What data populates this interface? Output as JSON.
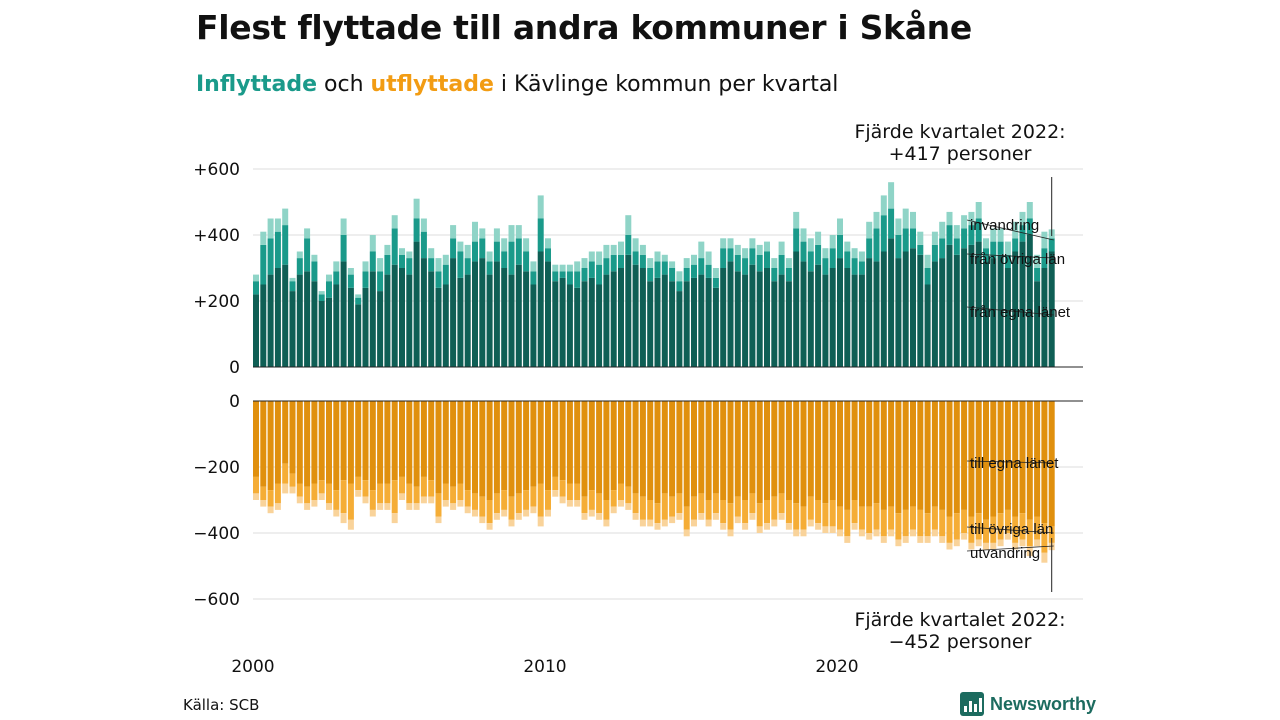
{
  "title": "Flest flyttade till andra kommuner i Skåne",
  "subtitle": {
    "in_word": "Inflyttade",
    "and_word": " och ",
    "out_word": "utflyttade",
    "rest": " i Kävlinge kommun per kvartal"
  },
  "source": "Källa: SCB",
  "brand": "Newsworthy",
  "colors": {
    "in_own": "#0f5f55",
    "in_other": "#1a9a8a",
    "in_abroad": "#8fd4c7",
    "out_own": "#e0900e",
    "out_other": "#f5ad36",
    "out_abroad": "#f9d39a"
  },
  "chart_data": {
    "type": "bar",
    "x_start": "2000 Q1",
    "x_ticks": [
      "2000",
      "2010",
      "2020"
    ],
    "top_ticks": [
      "+600",
      "+400",
      "+200",
      "0"
    ],
    "bottom_ticks": [
      "0",
      "−200",
      "−400",
      "−600"
    ],
    "top_ylim": [
      0,
      600
    ],
    "bottom_ylim": [
      -600,
      0
    ],
    "top_annotation": [
      "Fjärde kvartalet 2022:",
      "+417 personer"
    ],
    "bottom_annotation": [
      "Fjärde kvartalet 2022:",
      "−452 personer"
    ],
    "in_labels": [
      "invandring",
      "från övriga län",
      "från egna länet"
    ],
    "out_labels": [
      "till egna länet",
      "till övriga län",
      "utvandring"
    ],
    "inflyttade": {
      "from_own_county": [
        220,
        250,
        280,
        300,
        310,
        230,
        280,
        290,
        260,
        200,
        210,
        250,
        320,
        240,
        190,
        240,
        290,
        230,
        280,
        310,
        300,
        280,
        380,
        330,
        290,
        240,
        250,
        330,
        270,
        280,
        320,
        330,
        280,
        320,
        300,
        280,
        310,
        290,
        250,
        350,
        320,
        260,
        270,
        250,
        240,
        260,
        270,
        250,
        280,
        290,
        300,
        340,
        310,
        300,
        260,
        270,
        280,
        260,
        230,
        260,
        270,
        280,
        270,
        240,
        300,
        320,
        290,
        280,
        310,
        290,
        300,
        260,
        280,
        260,
        350,
        320,
        290,
        310,
        280,
        300,
        330,
        300,
        280,
        280,
        330,
        320,
        350,
        390,
        330,
        350,
        360,
        340,
        250,
        320,
        330,
        370,
        340,
        360,
        370,
        380,
        320,
        330,
        340,
        300,
        350,
        380,
        400,
        260,
        300,
        350
      ],
      "from_other_counties": [
        40,
        120,
        110,
        110,
        120,
        30,
        50,
        100,
        60,
        20,
        50,
        40,
        80,
        40,
        20,
        50,
        60,
        60,
        60,
        110,
        40,
        50,
        70,
        80,
        40,
        50,
        60,
        60,
        80,
        50,
        60,
        60,
        40,
        60,
        50,
        100,
        80,
        60,
        40,
        100,
        40,
        30,
        20,
        40,
        50,
        40,
        50,
        60,
        50,
        50,
        40,
        60,
        40,
        40,
        40,
        50,
        40,
        40,
        30,
        40,
        40,
        50,
        40,
        30,
        60,
        40,
        50,
        50,
        50,
        50,
        50,
        40,
        60,
        40,
        70,
        60,
        60,
        60,
        50,
        60,
        70,
        50,
        50,
        40,
        60,
        100,
        110,
        90,
        70,
        70,
        60,
        30,
        50,
        50,
        60,
        60,
        50,
        60,
        60,
        70,
        40,
        50,
        40,
        40,
        40,
        50,
        50,
        40,
        60,
        40
      ],
      "from_abroad": [
        20,
        40,
        60,
        40,
        50,
        10,
        20,
        30,
        20,
        10,
        20,
        30,
        50,
        20,
        10,
        30,
        50,
        40,
        30,
        40,
        20,
        20,
        60,
        40,
        30,
        40,
        30,
        40,
        30,
        40,
        60,
        30,
        30,
        40,
        40,
        50,
        40,
        40,
        30,
        70,
        30,
        20,
        20,
        20,
        30,
        30,
        30,
        40,
        40,
        30,
        40,
        60,
        40,
        30,
        30,
        30,
        20,
        20,
        30,
        30,
        30,
        50,
        40,
        30,
        30,
        30,
        30,
        30,
        30,
        30,
        30,
        30,
        40,
        30,
        50,
        40,
        40,
        40,
        30,
        40,
        50,
        30,
        30,
        30,
        50,
        50,
        60,
        80,
        50,
        60,
        50,
        40,
        40,
        40,
        50,
        40,
        40,
        40,
        40,
        50,
        30,
        40,
        40,
        40,
        50,
        40,
        50,
        40,
        50,
        27
      ]
    },
    "utflyttade": {
      "to_own_county": [
        -230,
        -260,
        -270,
        -250,
        -190,
        -220,
        -250,
        -260,
        -250,
        -240,
        -250,
        -270,
        -240,
        -250,
        -230,
        -240,
        -270,
        -250,
        -250,
        -240,
        -230,
        -250,
        -260,
        -230,
        -240,
        -280,
        -250,
        -260,
        -250,
        -270,
        -280,
        -290,
        -300,
        -280,
        -270,
        -290,
        -280,
        -270,
        -260,
        -250,
        -270,
        -230,
        -240,
        -250,
        -250,
        -290,
        -270,
        -280,
        -300,
        -270,
        -250,
        -260,
        -280,
        -290,
        -300,
        -310,
        -280,
        -290,
        -280,
        -320,
        -290,
        -280,
        -300,
        -280,
        -300,
        -310,
        -290,
        -300,
        -280,
        -310,
        -300,
        -290,
        -280,
        -300,
        -310,
        -320,
        -290,
        -300,
        -310,
        -300,
        -320,
        -330,
        -300,
        -320,
        -320,
        -310,
        -330,
        -320,
        -340,
        -330,
        -320,
        -330,
        -340,
        -320,
        -330,
        -350,
        -340,
        -330,
        -350,
        -340,
        -360,
        -350,
        -340,
        -330,
        -350,
        -340,
        -360,
        -350,
        -370,
        -380
      ],
      "to_other_counties": [
        -50,
        -40,
        -50,
        -60,
        -60,
        -40,
        -40,
        -50,
        -50,
        -40,
        -60,
        -60,
        -100,
        -110,
        -40,
        -50,
        -60,
        -60,
        -60,
        -100,
        -50,
        -60,
        -50,
        -60,
        -50,
        -70,
        -50,
        -50,
        -50,
        -50,
        -50,
        -60,
        -70,
        -60,
        -60,
        -70,
        -60,
        -60,
        -60,
        -100,
        -60,
        -40,
        -50,
        -50,
        -50,
        -50,
        -60,
        -60,
        -60,
        -50,
        -50,
        -50,
        -60,
        -70,
        -60,
        -60,
        -80,
        -60,
        -60,
        -70,
        -70,
        -60,
        -60,
        -60,
        -70,
        -80,
        -60,
        -70,
        -60,
        -70,
        -70,
        -70,
        -60,
        -70,
        -80,
        -70,
        -70,
        -70,
        -70,
        -80,
        -70,
        -80,
        -70,
        -70,
        -80,
        -80,
        -80,
        -70,
        -80,
        -80,
        -70,
        -80,
        -70,
        -70,
        -80,
        -80,
        -80,
        -70,
        -80,
        -80,
        -70,
        -80,
        -80,
        -70,
        -80,
        -80,
        -80,
        -70,
        -90,
        -50
      ],
      "to_abroad": [
        -20,
        -20,
        -20,
        -20,
        -30,
        -20,
        -20,
        -20,
        -20,
        -20,
        -20,
        -20,
        -30,
        -30,
        -20,
        -20,
        -20,
        -20,
        -20,
        -30,
        -20,
        -20,
        -20,
        -20,
        -20,
        -20,
        -20,
        -20,
        -20,
        -20,
        -20,
        -20,
        -20,
        -20,
        -20,
        -20,
        -20,
        -20,
        -20,
        -30,
        -20,
        -20,
        -20,
        -20,
        -20,
        -20,
        -20,
        -20,
        -20,
        -20,
        -20,
        -20,
        -20,
        -20,
        -20,
        -20,
        -20,
        -20,
        -20,
        -20,
        -20,
        -20,
        -20,
        -20,
        -20,
        -20,
        -20,
        -20,
        -20,
        -20,
        -20,
        -20,
        -20,
        -20,
        -20,
        -20,
        -20,
        -20,
        -20,
        -20,
        -20,
        -20,
        -20,
        -20,
        -20,
        -20,
        -20,
        -20,
        -20,
        -20,
        -20,
        -20,
        -20,
        -20,
        -20,
        -20,
        -20,
        -20,
        -20,
        -20,
        -20,
        -20,
        -20,
        -20,
        -20,
        -20,
        -30,
        -20,
        -30,
        -22
      ]
    }
  }
}
